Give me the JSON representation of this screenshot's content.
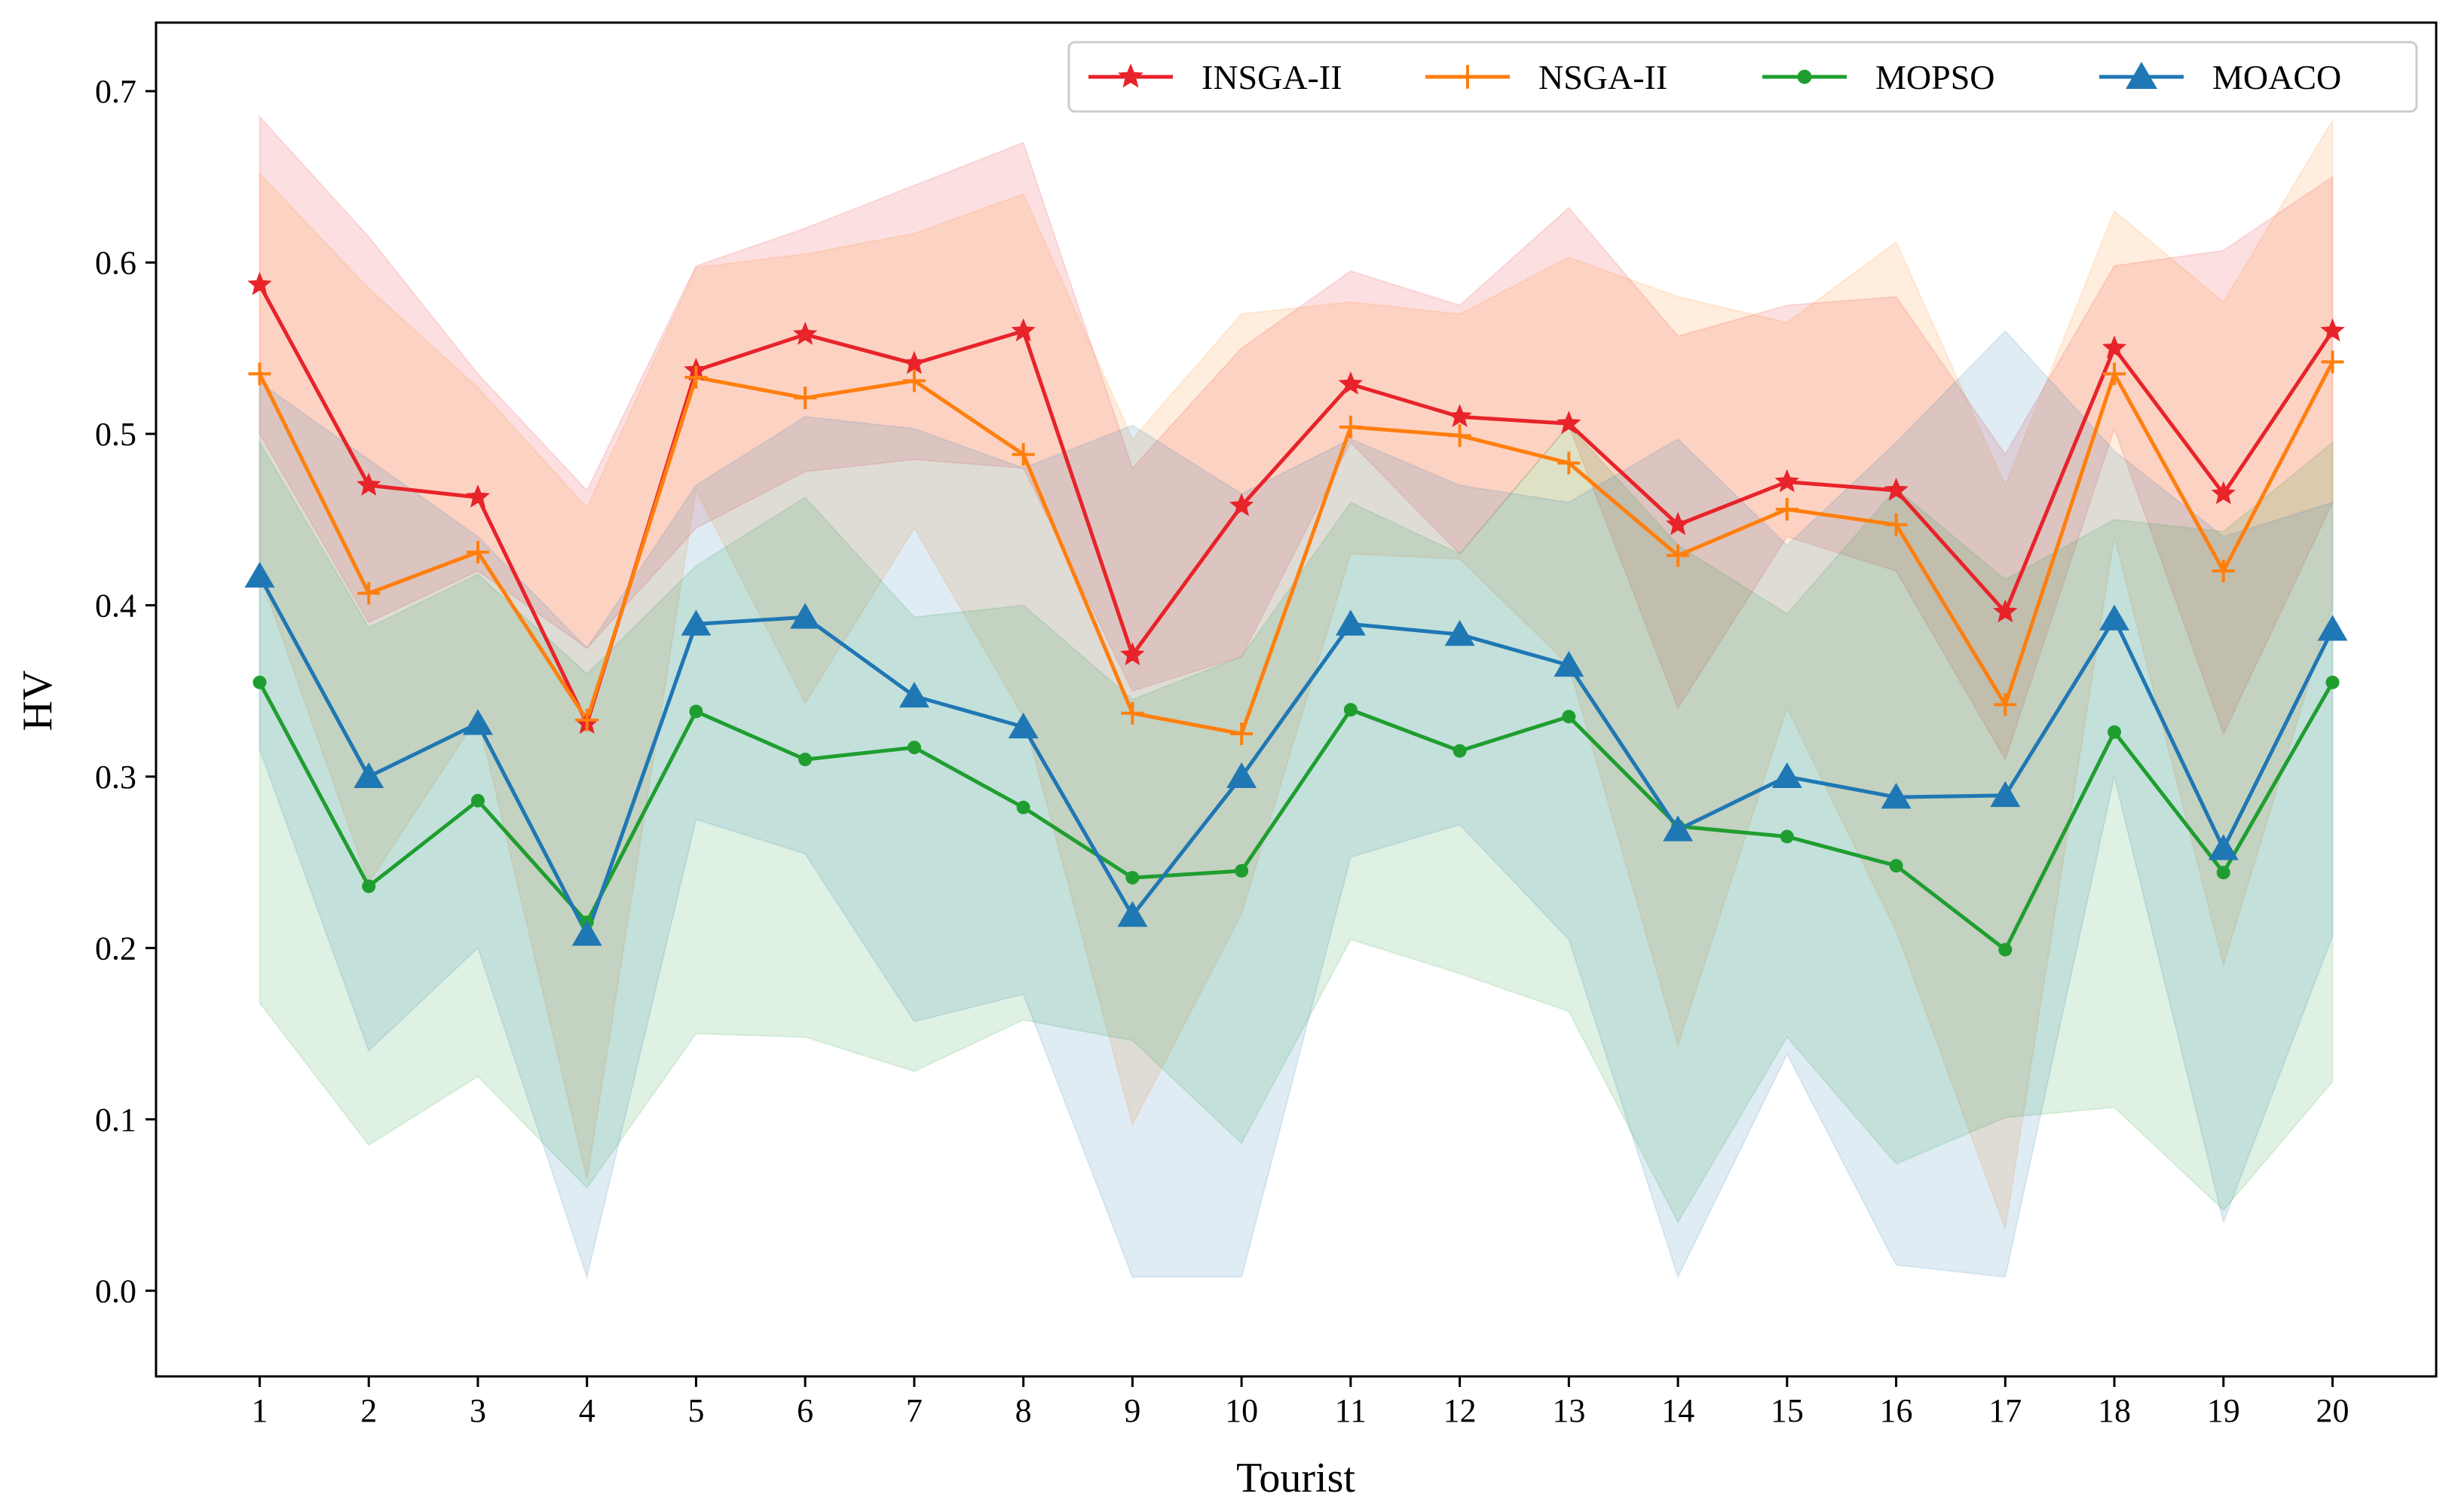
{
  "chart_data": {
    "type": "line",
    "title": "",
    "xlabel": "Tourist",
    "ylabel": "HV",
    "x": [
      1,
      2,
      3,
      4,
      5,
      6,
      7,
      8,
      9,
      10,
      11,
      12,
      13,
      14,
      15,
      16,
      17,
      18,
      19,
      20
    ],
    "x_tick_labels": [
      "1",
      "2",
      "3",
      "4",
      "5",
      "6",
      "7",
      "8",
      "9",
      "10",
      "11",
      "12",
      "13",
      "14",
      "15",
      "16",
      "17",
      "18",
      "19",
      "20"
    ],
    "xlim": [
      0.05,
      20.95
    ],
    "ylim": [
      -0.05,
      0.74
    ],
    "y_ticks": [
      0.0,
      0.1,
      0.2,
      0.3,
      0.4,
      0.5,
      0.6,
      0.7
    ],
    "y_tick_labels": [
      "0.0",
      "0.1",
      "0.2",
      "0.3",
      "0.4",
      "0.5",
      "0.6",
      "0.7"
    ],
    "legend_position": "top-right",
    "series": [
      {
        "name": "INSGA-II",
        "color": "#e8232a",
        "marker": "star",
        "values": [
          0.587,
          0.47,
          0.463,
          0.331,
          0.537,
          0.558,
          0.541,
          0.56,
          0.371,
          0.458,
          0.529,
          0.51,
          0.506,
          0.447,
          0.472,
          0.467,
          0.396,
          0.55,
          0.465,
          0.56
        ],
        "band_upper": [
          0.685,
          0.615,
          0.535,
          0.467,
          0.598,
          0.62,
          0.645,
          0.67,
          0.48,
          0.55,
          0.595,
          0.575,
          0.632,
          0.557,
          0.575,
          0.58,
          0.488,
          0.598,
          0.607,
          0.65
        ],
        "band_lower": [
          0.5,
          0.39,
          0.42,
          0.375,
          0.445,
          0.478,
          0.485,
          0.48,
          0.35,
          0.37,
          0.495,
          0.43,
          0.505,
          0.34,
          0.44,
          0.42,
          0.31,
          0.503,
          0.325,
          0.46
        ]
      },
      {
        "name": "NSGA-II",
        "color": "#ff7f0e",
        "marker": "plus",
        "values": [
          0.535,
          0.407,
          0.431,
          0.333,
          0.533,
          0.521,
          0.531,
          0.488,
          0.337,
          0.325,
          0.504,
          0.499,
          0.483,
          0.429,
          0.456,
          0.447,
          0.342,
          0.535,
          0.42,
          0.542
        ],
        "band_upper": [
          0.652,
          0.585,
          0.527,
          0.457,
          0.597,
          0.605,
          0.617,
          0.64,
          0.497,
          0.57,
          0.577,
          0.57,
          0.603,
          0.58,
          0.565,
          0.612,
          0.47,
          0.63,
          0.577,
          0.683
        ],
        "band_lower": [
          0.418,
          0.238,
          0.335,
          0.065,
          0.467,
          0.343,
          0.445,
          0.335,
          0.097,
          0.22,
          0.43,
          0.427,
          0.365,
          0.143,
          0.34,
          0.21,
          0.036,
          0.44,
          0.19,
          0.4
        ]
      },
      {
        "name": "MOPSO",
        "color": "#1f9e2f",
        "marker": "circle",
        "values": [
          0.355,
          0.236,
          0.286,
          0.215,
          0.338,
          0.31,
          0.317,
          0.282,
          0.241,
          0.245,
          0.339,
          0.315,
          0.335,
          0.271,
          0.265,
          0.248,
          0.199,
          0.326,
          0.244,
          0.355
        ],
        "band_upper": [
          0.495,
          0.387,
          0.418,
          0.36,
          0.423,
          0.463,
          0.393,
          0.4,
          0.345,
          0.37,
          0.46,
          0.43,
          0.505,
          0.435,
          0.395,
          0.468,
          0.415,
          0.45,
          0.443,
          0.495
        ],
        "band_lower": [
          0.168,
          0.085,
          0.125,
          0.06,
          0.15,
          0.148,
          0.128,
          0.158,
          0.146,
          0.086,
          0.205,
          0.185,
          0.163,
          0.04,
          0.148,
          0.074,
          0.101,
          0.107,
          0.047,
          0.122
        ]
      },
      {
        "name": "MOACO",
        "color": "#1f77b4",
        "marker": "triangle",
        "values": [
          0.417,
          0.3,
          0.331,
          0.208,
          0.389,
          0.393,
          0.347,
          0.329,
          0.219,
          0.3,
          0.389,
          0.383,
          0.365,
          0.269,
          0.3,
          0.288,
          0.289,
          0.392,
          0.258,
          0.386
        ],
        "band_upper": [
          0.53,
          0.485,
          0.44,
          0.375,
          0.47,
          0.51,
          0.503,
          0.48,
          0.505,
          0.465,
          0.497,
          0.47,
          0.46,
          0.497,
          0.435,
          0.495,
          0.56,
          0.49,
          0.44,
          0.46
        ],
        "band_lower": [
          0.316,
          0.14,
          0.2,
          0.008,
          0.275,
          0.255,
          0.157,
          0.173,
          0.008,
          0.008,
          0.253,
          0.272,
          0.205,
          0.008,
          0.138,
          0.015,
          0.008,
          0.3,
          0.04,
          0.207
        ]
      }
    ]
  }
}
